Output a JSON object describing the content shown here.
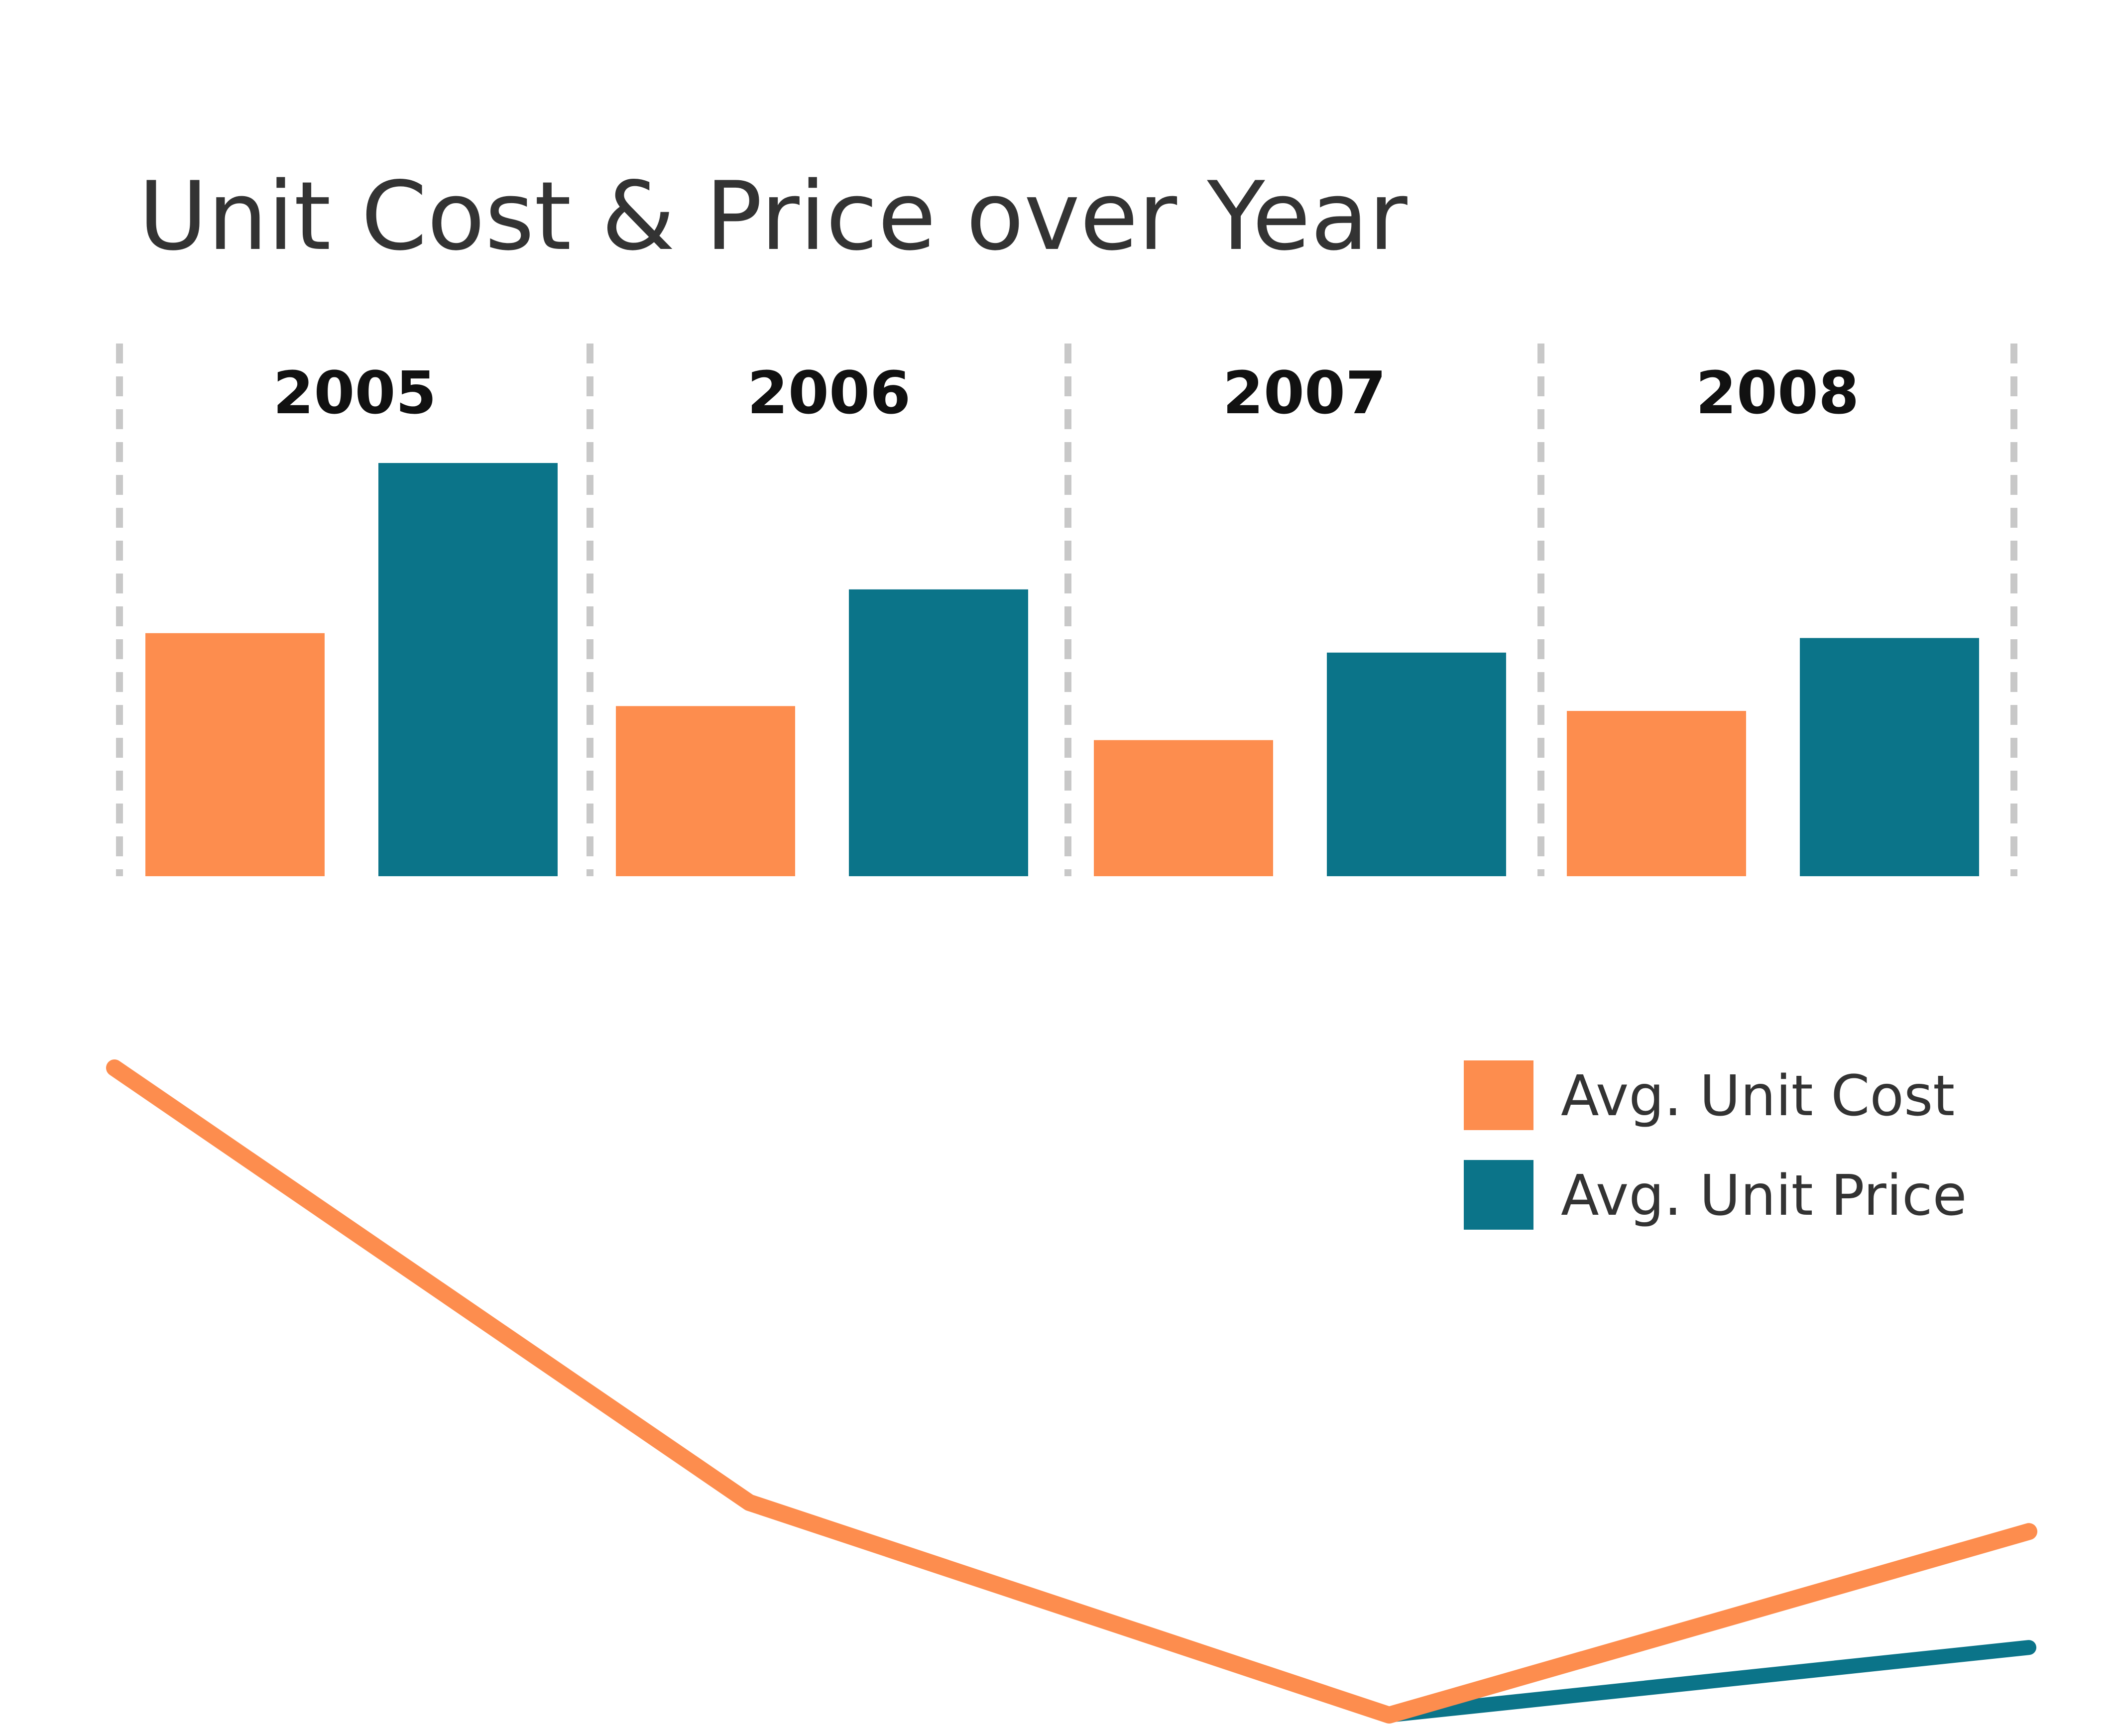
{
  "chart_data": [
    {
      "type": "bar",
      "title": "Unit Cost & Price over Year",
      "categories": [
        "2005",
        "2006",
        "2007",
        "2008"
      ],
      "series": [
        {
          "name": "Avg. Unit Cost",
          "color": "#FD8D4E",
          "values": [
            5.0,
            3.5,
            2.8,
            3.4
          ]
        },
        {
          "name": "Avg. Unit Price",
          "color": "#0B7489",
          "values": [
            8.5,
            5.9,
            4.6,
            4.9
          ]
        }
      ],
      "ylim": [
        0,
        8.5
      ],
      "grid": false,
      "separators": "dashed",
      "separator_color": "#C8C8C8"
    },
    {
      "type": "line",
      "x": [
        "2005",
        "2006",
        "2007",
        "2008"
      ],
      "series": [
        {
          "name": "Avg. Unit Cost",
          "color": "#FD8D4E",
          "values": [
            1.0,
            0.55,
            0.33,
            0.52
          ]
        },
        {
          "name": "Avg. Unit Price",
          "color": "#0B7489",
          "values": [
            1.0,
            0.55,
            0.33,
            0.4
          ]
        }
      ],
      "ylim": [
        0.33,
        1.0
      ],
      "grid": false,
      "legend": {
        "placement": "top-right",
        "entries": [
          {
            "label": "Avg. Unit Cost",
            "color": "#FD8D4E"
          },
          {
            "label": "Avg. Unit Price",
            "color": "#0B7489"
          }
        ]
      }
    }
  ]
}
